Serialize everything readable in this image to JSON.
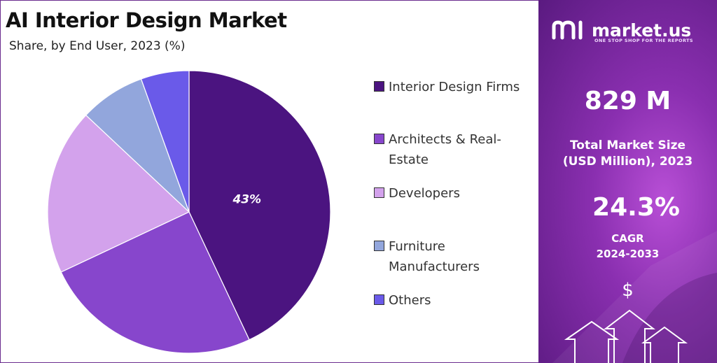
{
  "chart_data": {
    "type": "pie",
    "title": "AI Interior Design Market",
    "subtitle": "Share, by End User, 2023 (%)",
    "categories": [
      "Interior Design Firms",
      "Architects & Real-Estate",
      "Developers",
      "Furniture Manufacturers",
      "Others"
    ],
    "values": [
      43,
      25,
      19,
      7.5,
      5.5
    ],
    "colors": [
      "#4b1480",
      "#8746cc",
      "#d3a2ec",
      "#92a6dc",
      "#6a5ae9"
    ],
    "data_labels": [
      "43%",
      "",
      "",
      "",
      ""
    ],
    "legend_placement": "right"
  },
  "legend": {
    "items": [
      {
        "label": "Interior Design Firms",
        "color": "#4b1480"
      },
      {
        "label": "Architects & Real-Estate",
        "color": "#8746cc"
      },
      {
        "label": "Developers",
        "color": "#d3a2ec"
      },
      {
        "label": "Furniture Manufacturers",
        "color": "#92a6dc"
      },
      {
        "label": "Others",
        "color": "#6a5ae9"
      }
    ]
  },
  "panel": {
    "brand": "market.us",
    "tagline": "ONE STOP SHOP FOR THE REPORTS",
    "market_size": "829 M",
    "market_size_label_1": "Total Market Size",
    "market_size_label_2": "(USD Million), 2023",
    "cagr": "24.3%",
    "cagr_label_1": "CAGR",
    "cagr_label_2": "2024-2033",
    "dollar_symbol": "$",
    "colors": {
      "panel_dark": "#5a1a80",
      "panel_light": "#b84fd6"
    }
  }
}
